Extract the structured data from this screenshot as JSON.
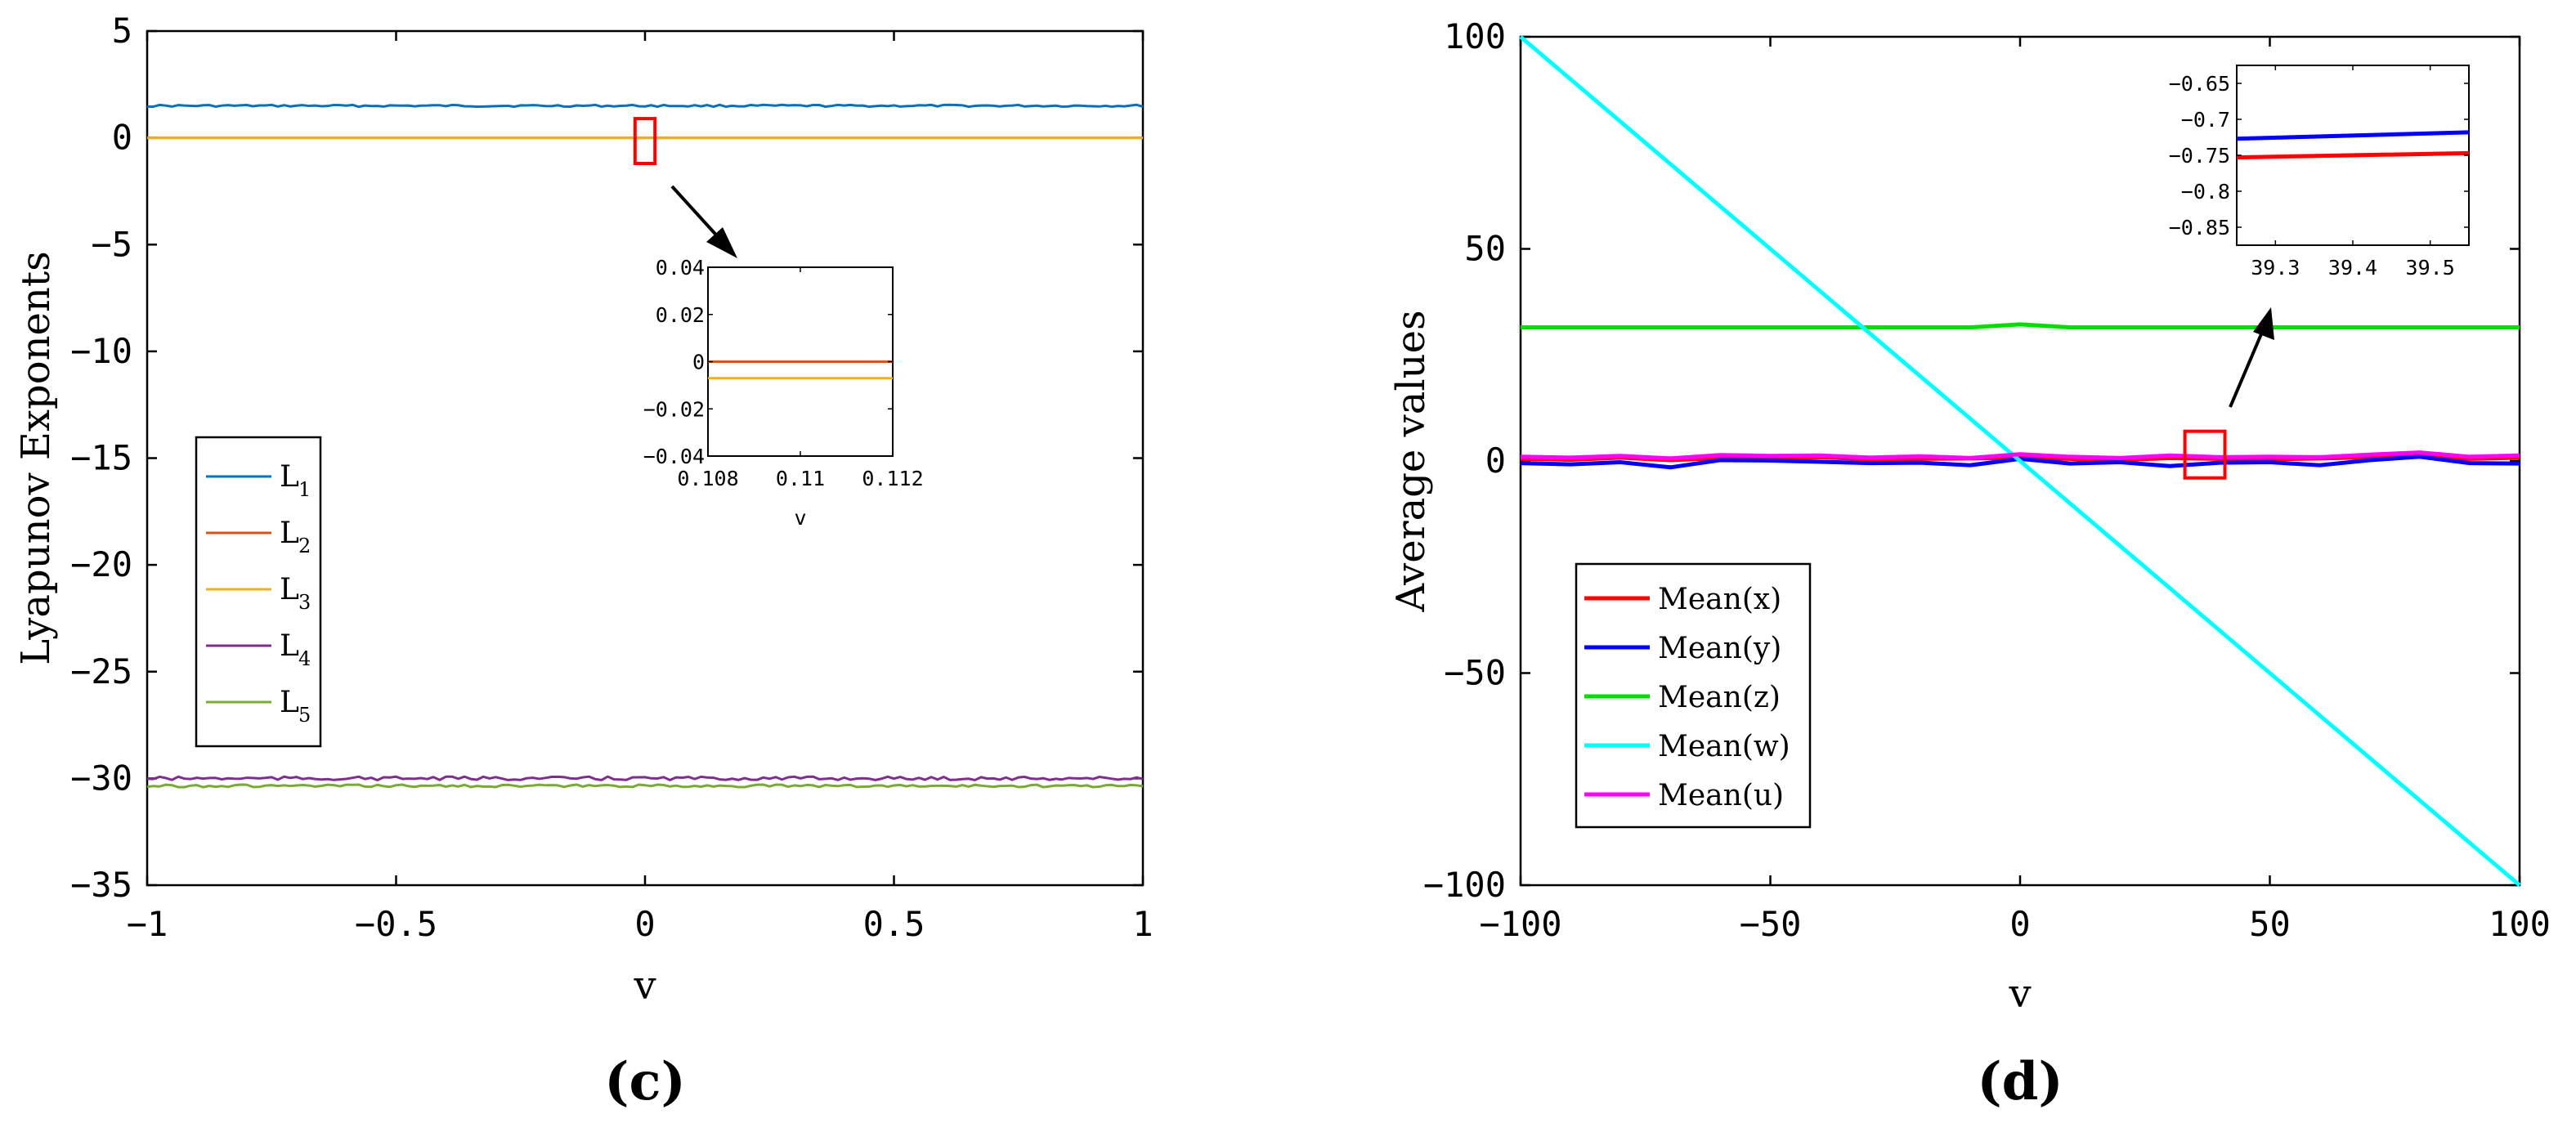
{
  "chart_data": [
    {
      "type": "line",
      "panel_label": "(c)",
      "xlabel": "v",
      "ylabel": "Lyapunov Exponents",
      "xlim": [
        -1,
        1
      ],
      "ylim": [
        -35,
        5
      ],
      "xticks": [
        -1,
        -0.5,
        0,
        0.5,
        1
      ],
      "xtick_labels": [
        "−1",
        "−0.5",
        "0",
        "0.5",
        "1"
      ],
      "yticks": [
        5,
        0,
        -5,
        -10,
        -15,
        -20,
        -25,
        -30,
        -35
      ],
      "ytick_labels": [
        "5",
        "0",
        "−5",
        "−10",
        "−15",
        "−20",
        "−25",
        "−30",
        "−35"
      ],
      "grid": false,
      "legend_position": "left",
      "x": [
        -1,
        -0.5,
        0,
        0.5,
        1
      ],
      "series": [
        {
          "name": "L",
          "sub": "1",
          "color": "#0072BD",
          "values": [
            1.5,
            1.5,
            1.5,
            1.5,
            1.5
          ]
        },
        {
          "name": "L",
          "sub": "2",
          "color": "#D95319",
          "values": [
            0,
            0,
            0,
            0,
            0
          ]
        },
        {
          "name": "L",
          "sub": "3",
          "color": "#EDB120",
          "values": [
            -0.007,
            -0.007,
            -0.007,
            -0.007,
            -0.007
          ]
        },
        {
          "name": "L",
          "sub": "4",
          "color": "#7E2F8E",
          "values": [
            -30.0,
            -30.0,
            -30.0,
            -30.0,
            -30.0
          ]
        },
        {
          "name": "L",
          "sub": "5",
          "color": "#77AC30",
          "values": [
            -30.35,
            -30.35,
            -30.35,
            -30.35,
            -30.35
          ]
        }
      ],
      "zoom_box": {
        "x": [
          -0.02,
          0.02
        ],
        "y": [
          -1.2,
          0.9
        ],
        "color": "#FF0000"
      },
      "inset": {
        "xlabel": "v",
        "xlim": [
          0.108,
          0.112
        ],
        "ylim": [
          -0.04,
          0.04
        ],
        "xticks": [
          0.108,
          0.11,
          0.112
        ],
        "xtick_labels": [
          "0.108",
          "0.11",
          "0.112"
        ],
        "yticks": [
          0.04,
          0.02,
          0,
          -0.02,
          -0.04
        ],
        "ytick_labels": [
          "0.04",
          "0.02",
          "0",
          "−0.02",
          "−0.04"
        ],
        "x": [
          0.108,
          0.112
        ],
        "series": [
          {
            "color": "#D95319",
            "values": [
              0,
              0
            ]
          },
          {
            "color": "#EDB120",
            "values": [
              -0.007,
              -0.007
            ]
          }
        ]
      }
    },
    {
      "type": "line",
      "panel_label": "(d)",
      "xlabel": "v",
      "ylabel": "Average values",
      "xlim": [
        -100,
        100
      ],
      "ylim": [
        -100,
        100
      ],
      "xticks": [
        -100,
        -50,
        0,
        50,
        100
      ],
      "xtick_labels": [
        "−100",
        "−50",
        "0",
        "50",
        "100"
      ],
      "yticks": [
        100,
        50,
        0,
        -50,
        -100
      ],
      "ytick_labels": [
        "100",
        "50",
        "0",
        "−50",
        "−100"
      ],
      "grid": false,
      "legend_position": "bottom-left",
      "x": [
        -100,
        -90,
        -80,
        -70,
        -60,
        -50,
        -40,
        -30,
        -20,
        -10,
        0,
        10,
        20,
        30,
        40,
        50,
        60,
        70,
        80,
        90,
        100
      ],
      "series": [
        {
          "name": "Mean(x)",
          "color": "#FF0000",
          "values": [
            0.5,
            0.3,
            0.8,
            0.2,
            0.7,
            0.6,
            0.9,
            0.4,
            0.5,
            0.6,
            0.8,
            0.5,
            0.2,
            0.7,
            0.5,
            0.4,
            0.6,
            0.9,
            1.2,
            0.5,
            0.8
          ]
        },
        {
          "name": "Mean(y)",
          "color": "#0000FF",
          "values": [
            -0.5,
            -0.8,
            -0.3,
            -1.5,
            0.2,
            0.1,
            -0.2,
            -0.5,
            -0.4,
            -1.0,
            0.5,
            -0.6,
            -0.3,
            -1.2,
            -0.4,
            -0.3,
            -1.0,
            0.2,
            1.0,
            -0.5,
            -0.6
          ]
        },
        {
          "name": "Mean(z)",
          "color": "#00DD00",
          "values": [
            31.5,
            31.5,
            31.5,
            31.5,
            31.5,
            31.5,
            31.5,
            31.5,
            31.5,
            31.5,
            32.2,
            31.5,
            31.5,
            31.5,
            31.5,
            31.5,
            31.5,
            31.5,
            31.5,
            31.5,
            31.5
          ]
        },
        {
          "name": "Mean(w)",
          "color": "#00FFFF",
          "values": [
            100,
            90,
            80,
            70,
            60,
            50,
            40,
            30,
            20,
            10,
            0,
            -10,
            -20,
            -30,
            -40,
            -50,
            -60,
            -70,
            -80,
            -90,
            -100
          ]
        },
        {
          "name": "Mean(u)",
          "color": "#FF00FF",
          "values": [
            1.0,
            0.8,
            1.2,
            0.6,
            1.4,
            1.2,
            1.3,
            0.8,
            1.1,
            0.7,
            1.6,
            1.0,
            0.7,
            1.3,
            0.9,
            1.0,
            0.9,
            1.5,
            2.0,
            1.0,
            1.3
          ]
        }
      ],
      "zoom_box": {
        "x": [
          33,
          41
        ],
        "y": [
          -4,
          7
        ],
        "color": "#FF0000"
      },
      "inset": {
        "xlim": [
          39.25,
          39.55
        ],
        "ylim": [
          -0.875,
          -0.625
        ],
        "xticks": [
          39.3,
          39.4,
          39.5
        ],
        "xtick_labels": [
          "39.3",
          "39.4",
          "39.5"
        ],
        "yticks": [
          -0.65,
          -0.7,
          -0.75,
          -0.8,
          -0.85
        ],
        "ytick_labels": [
          "−0.65",
          "−0.7",
          "−0.75",
          "−0.8",
          "−0.85"
        ],
        "x": [
          39.25,
          39.55
        ],
        "series": [
          {
            "color": "#0000FF",
            "values": [
              -0.727,
              -0.718
            ]
          },
          {
            "color": "#FF0000",
            "values": [
              -0.753,
              -0.747
            ]
          }
        ]
      }
    }
  ]
}
